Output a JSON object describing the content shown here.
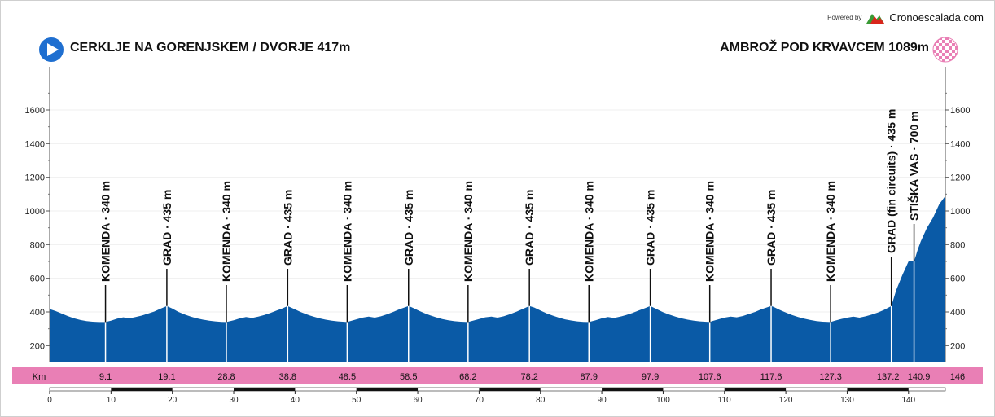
{
  "brand": {
    "powered_by": "Powered by",
    "name": "Cronoescalada.com"
  },
  "header": {
    "start_title": "CERKLJE NA GORENJSKEM / DVORJE 417m",
    "end_title": "AMBROŽ POD KRVAVCEM 1089m",
    "start_icon": "play-arrow-icon",
    "finish_icon": "checkered-flag-icon"
  },
  "colors": {
    "profile_fill": "#0a5aa6",
    "km_band": "#e97fb5",
    "accent_red": "#d9251c",
    "accent_green": "#3a9a35"
  },
  "chart_data": {
    "type": "area",
    "title": "",
    "xlabel": "Km",
    "ylabel": "",
    "xlim": [
      0,
      146
    ],
    "ylim": [
      100,
      1800
    ],
    "y_ticks": [
      200,
      400,
      600,
      800,
      1000,
      1200,
      1400,
      1600
    ],
    "x_ticks": [
      0,
      10,
      20,
      30,
      40,
      50,
      60,
      70,
      80,
      90,
      100,
      110,
      120,
      130,
      140
    ],
    "grid": true,
    "km_markers": [
      "9.1",
      "19.1",
      "28.8",
      "38.8",
      "48.5",
      "58.5",
      "68.2",
      "78.2",
      "87.9",
      "97.9",
      "107.6",
      "117.6",
      "127.3",
      "137.2",
      "140.9",
      "146"
    ],
    "waypoints": [
      {
        "km": 9.1,
        "label": "KOMENDA · 340 m"
      },
      {
        "km": 19.1,
        "label": "GRAD · 435 m"
      },
      {
        "km": 28.8,
        "label": "KOMENDA · 340 m"
      },
      {
        "km": 38.8,
        "label": "GRAD · 435 m"
      },
      {
        "km": 48.5,
        "label": "KOMENDA · 340 m"
      },
      {
        "km": 58.5,
        "label": "GRAD · 435 m"
      },
      {
        "km": 68.2,
        "label": "KOMENDA · 340 m"
      },
      {
        "km": 78.2,
        "label": "GRAD · 435 m"
      },
      {
        "km": 87.9,
        "label": "KOMENDA · 340 m"
      },
      {
        "km": 97.9,
        "label": "GRAD · 435 m"
      },
      {
        "km": 107.6,
        "label": "KOMENDA · 340 m"
      },
      {
        "km": 117.6,
        "label": "GRAD · 435 m"
      },
      {
        "km": 127.3,
        "label": "KOMENDA · 340 m"
      },
      {
        "km": 137.2,
        "label": "GRAD (fin circuits) · 435 m"
      },
      {
        "km": 140.9,
        "label": "STIŠKA VAS · 700 m"
      }
    ],
    "profile": [
      [
        0,
        417
      ],
      [
        1,
        405
      ],
      [
        2,
        390
      ],
      [
        3,
        375
      ],
      [
        4,
        362
      ],
      [
        5,
        352
      ],
      [
        6,
        346
      ],
      [
        7,
        342
      ],
      [
        8,
        340
      ],
      [
        9.1,
        340
      ],
      [
        10,
        348
      ],
      [
        11,
        360
      ],
      [
        12,
        368
      ],
      [
        13,
        362
      ],
      [
        14,
        370
      ],
      [
        15,
        378
      ],
      [
        16,
        390
      ],
      [
        17,
        402
      ],
      [
        18,
        418
      ],
      [
        19.1,
        435
      ],
      [
        20,
        420
      ],
      [
        21,
        400
      ],
      [
        22,
        385
      ],
      [
        23,
        372
      ],
      [
        24,
        362
      ],
      [
        25,
        354
      ],
      [
        26,
        348
      ],
      [
        27,
        344
      ],
      [
        28,
        341
      ],
      [
        28.8,
        340
      ],
      [
        30,
        350
      ],
      [
        31,
        362
      ],
      [
        32,
        370
      ],
      [
        33,
        364
      ],
      [
        34,
        372
      ],
      [
        35,
        382
      ],
      [
        36,
        394
      ],
      [
        37,
        408
      ],
      [
        38,
        422
      ],
      [
        38.8,
        435
      ],
      [
        40,
        415
      ],
      [
        41,
        398
      ],
      [
        42,
        384
      ],
      [
        43,
        372
      ],
      [
        44,
        362
      ],
      [
        45,
        354
      ],
      [
        46,
        348
      ],
      [
        47,
        344
      ],
      [
        48.5,
        340
      ],
      [
        49,
        346
      ],
      [
        50,
        356
      ],
      [
        51,
        366
      ],
      [
        52,
        372
      ],
      [
        53,
        366
      ],
      [
        54,
        374
      ],
      [
        55,
        386
      ],
      [
        56,
        400
      ],
      [
        57,
        416
      ],
      [
        58.5,
        435
      ],
      [
        59,
        428
      ],
      [
        60,
        410
      ],
      [
        61,
        394
      ],
      [
        62,
        380
      ],
      [
        63,
        368
      ],
      [
        64,
        358
      ],
      [
        65,
        350
      ],
      [
        66,
        345
      ],
      [
        67,
        342
      ],
      [
        68.2,
        340
      ],
      [
        69,
        348
      ],
      [
        70,
        358
      ],
      [
        71,
        368
      ],
      [
        72,
        372
      ],
      [
        73,
        366
      ],
      [
        74,
        374
      ],
      [
        75,
        386
      ],
      [
        76,
        400
      ],
      [
        77,
        416
      ],
      [
        78.2,
        435
      ],
      [
        79,
        426
      ],
      [
        80,
        408
      ],
      [
        81,
        392
      ],
      [
        82,
        378
      ],
      [
        83,
        366
      ],
      [
        84,
        356
      ],
      [
        85,
        349
      ],
      [
        86,
        344
      ],
      [
        87,
        341
      ],
      [
        87.9,
        340
      ],
      [
        89,
        350
      ],
      [
        90,
        362
      ],
      [
        91,
        370
      ],
      [
        92,
        364
      ],
      [
        93,
        372
      ],
      [
        94,
        382
      ],
      [
        95,
        394
      ],
      [
        96,
        408
      ],
      [
        97,
        422
      ],
      [
        97.9,
        435
      ],
      [
        99,
        416
      ],
      [
        100,
        398
      ],
      [
        101,
        384
      ],
      [
        102,
        372
      ],
      [
        103,
        362
      ],
      [
        104,
        354
      ],
      [
        105,
        348
      ],
      [
        106,
        344
      ],
      [
        107.6,
        340
      ],
      [
        108,
        346
      ],
      [
        109,
        356
      ],
      [
        110,
        366
      ],
      [
        111,
        372
      ],
      [
        112,
        368
      ],
      [
        113,
        376
      ],
      [
        114,
        388
      ],
      [
        115,
        400
      ],
      [
        116,
        416
      ],
      [
        117.6,
        435
      ],
      [
        118,
        430
      ],
      [
        119,
        412
      ],
      [
        120,
        396
      ],
      [
        121,
        382
      ],
      [
        122,
        370
      ],
      [
        123,
        360
      ],
      [
        124,
        352
      ],
      [
        125,
        346
      ],
      [
        126,
        342
      ],
      [
        127.3,
        340
      ],
      [
        128,
        348
      ],
      [
        129,
        358
      ],
      [
        130,
        366
      ],
      [
        131,
        372
      ],
      [
        132,
        366
      ],
      [
        133,
        374
      ],
      [
        134,
        384
      ],
      [
        135,
        396
      ],
      [
        136,
        412
      ],
      [
        137.2,
        435
      ],
      [
        138,
        530
      ],
      [
        139,
        620
      ],
      [
        140,
        700
      ],
      [
        140.9,
        700
      ],
      [
        141.5,
        770
      ],
      [
        142,
        820
      ],
      [
        143,
        900
      ],
      [
        144,
        960
      ],
      [
        145,
        1040
      ],
      [
        146,
        1089
      ]
    ]
  }
}
